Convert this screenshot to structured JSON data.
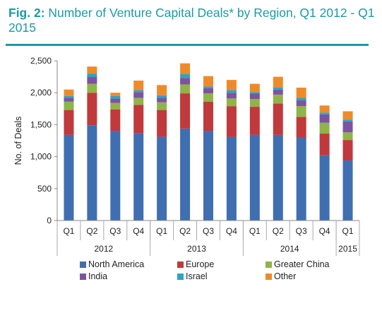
{
  "figure": {
    "label": "Fig. 2:",
    "title": "Number of Venture Capital Deals* by Region, Q1 2012 - Q1 2015"
  },
  "colors": {
    "title": "#1b9aa6",
    "North America": "#3f6fb0",
    "Europe": "#c0393c",
    "Greater China": "#8fb448",
    "India": "#7d53a0",
    "Israel": "#2aa5c3",
    "Other": "#ef8a2c"
  },
  "chart_data": {
    "type": "bar",
    "stacked": true,
    "ylabel": "No. of Deals",
    "xlabel": "",
    "ylim": [
      0,
      2500
    ],
    "yticks": [
      "0",
      "500",
      "1,000",
      "1,500",
      "2,000",
      "2,500"
    ],
    "grid": false,
    "legend_position": "bottom",
    "categories": [
      "Q1",
      "Q2",
      "Q3",
      "Q4",
      "Q1",
      "Q2",
      "Q3",
      "Q4",
      "Q1",
      "Q2",
      "Q3",
      "Q4",
      "Q1"
    ],
    "year_groups": [
      {
        "label": "2012",
        "span": 4
      },
      {
        "label": "2013",
        "span": 4
      },
      {
        "label": "2014",
        "span": 4
      },
      {
        "label": "2015",
        "span": 1
      }
    ],
    "series": [
      {
        "name": "North America",
        "values": [
          1340,
          1490,
          1400,
          1370,
          1310,
          1440,
          1400,
          1310,
          1340,
          1340,
          1300,
          1020,
          940
        ]
      },
      {
        "name": "Europe",
        "values": [
          390,
          510,
          340,
          440,
          420,
          550,
          460,
          480,
          440,
          490,
          320,
          340,
          320
        ]
      },
      {
        "name": "Greater China",
        "values": [
          130,
          140,
          100,
          110,
          120,
          140,
          130,
          120,
          120,
          140,
          170,
          170,
          120
        ]
      },
      {
        "name": "India",
        "values": [
          60,
          110,
          70,
          90,
          70,
          100,
          80,
          90,
          90,
          80,
          90,
          130,
          170
        ]
      },
      {
        "name": "Israel",
        "values": [
          30,
          50,
          40,
          30,
          40,
          60,
          30,
          40,
          20,
          30,
          40,
          30,
          30
        ]
      },
      {
        "name": "Other",
        "values": [
          100,
          110,
          50,
          150,
          160,
          170,
          160,
          160,
          130,
          170,
          160,
          110,
          130
        ]
      }
    ]
  }
}
